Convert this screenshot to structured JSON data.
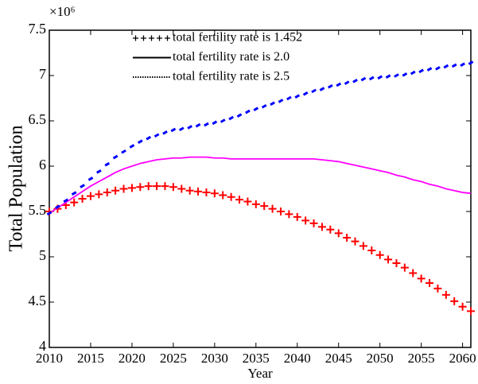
{
  "chart_data": {
    "type": "line",
    "y_label": "Total Population",
    "x_label": "Year",
    "y_multiplier": "×10⁶",
    "xlim": [
      2010,
      2061
    ],
    "xticks": [
      2010,
      2015,
      2020,
      2025,
      2030,
      2035,
      2040,
      2045,
      2050,
      2055,
      2060
    ],
    "ylim": [
      4,
      7.5
    ],
    "yticks": [
      4,
      4.5,
      5,
      5.5,
      6,
      6.5,
      7,
      7.5
    ],
    "legend": "upper left",
    "x": [
      2010,
      2011,
      2012,
      2013,
      2014,
      2015,
      2016,
      2017,
      2018,
      2019,
      2020,
      2021,
      2022,
      2023,
      2024,
      2025,
      2026,
      2027,
      2028,
      2029,
      2030,
      2031,
      2032,
      2033,
      2034,
      2035,
      2036,
      2037,
      2038,
      2039,
      2040,
      2041,
      2042,
      2043,
      2044,
      2045,
      2046,
      2047,
      2048,
      2049,
      2050,
      2051,
      2052,
      2053,
      2054,
      2055,
      2056,
      2057,
      2058,
      2059,
      2060,
      2061
    ],
    "series": [
      {
        "name": "total fertility rate is 1.452",
        "color": "#ff0000",
        "marker": "plus",
        "values": [
          5.5,
          5.53,
          5.57,
          5.6,
          5.64,
          5.67,
          5.69,
          5.71,
          5.73,
          5.75,
          5.76,
          5.77,
          5.78,
          5.78,
          5.78,
          5.77,
          5.75,
          5.73,
          5.72,
          5.71,
          5.7,
          5.68,
          5.66,
          5.63,
          5.61,
          5.58,
          5.56,
          5.53,
          5.5,
          5.47,
          5.44,
          5.4,
          5.37,
          5.33,
          5.3,
          5.26,
          5.21,
          5.17,
          5.12,
          5.07,
          5.02,
          4.97,
          4.93,
          4.88,
          4.82,
          4.76,
          4.71,
          4.65,
          4.58,
          4.51,
          4.45,
          4.4
        ]
      },
      {
        "name": "total fertility rate is 2.0",
        "color": "#ff00ff",
        "marker": "line",
        "values": [
          5.48,
          5.54,
          5.6,
          5.66,
          5.72,
          5.78,
          5.83,
          5.88,
          5.93,
          5.97,
          6.0,
          6.03,
          6.05,
          6.07,
          6.08,
          6.09,
          6.09,
          6.1,
          6.1,
          6.1,
          6.09,
          6.09,
          6.08,
          6.08,
          6.08,
          6.08,
          6.08,
          6.08,
          6.08,
          6.08,
          6.08,
          6.08,
          6.08,
          6.07,
          6.06,
          6.05,
          6.03,
          6.01,
          5.99,
          5.97,
          5.95,
          5.93,
          5.9,
          5.88,
          5.85,
          5.83,
          5.8,
          5.78,
          5.75,
          5.73,
          5.71,
          5.7
        ]
      },
      {
        "name": "total fertility rate is 2.5",
        "color": "#0000ff",
        "marker": "dash",
        "values": [
          5.48,
          5.55,
          5.62,
          5.7,
          5.78,
          5.86,
          5.94,
          6.02,
          6.1,
          6.16,
          6.22,
          6.27,
          6.31,
          6.34,
          6.37,
          6.4,
          6.41,
          6.43,
          6.45,
          6.46,
          6.48,
          6.5,
          6.53,
          6.56,
          6.6,
          6.63,
          6.66,
          6.69,
          6.72,
          6.75,
          6.77,
          6.8,
          6.83,
          6.85,
          6.88,
          6.9,
          6.92,
          6.94,
          6.96,
          6.97,
          6.98,
          6.99,
          7.0,
          7.01,
          7.03,
          7.05,
          7.07,
          7.08,
          7.1,
          7.11,
          7.12,
          7.14
        ]
      }
    ]
  }
}
